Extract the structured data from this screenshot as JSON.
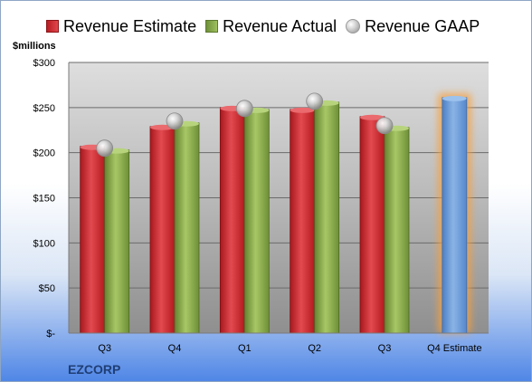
{
  "chart_data": {
    "type": "bar",
    "ylabel": "$millions",
    "ylim": [
      0,
      300
    ],
    "yticks": [
      0,
      50,
      100,
      150,
      200,
      250,
      300
    ],
    "ytick_labels": [
      "$-",
      "$50",
      "$100",
      "$150",
      "$200",
      "$250",
      "$300"
    ],
    "categories": [
      "Q3",
      "Q4",
      "Q1",
      "Q2",
      "Q3",
      "Q4 Estimate"
    ],
    "series": [
      {
        "name": "Revenue Estimate",
        "type": "bar",
        "color": "#c8262c",
        "values": [
          207,
          229,
          250,
          248,
          240,
          null
        ]
      },
      {
        "name": "Revenue Actual",
        "type": "bar",
        "color": "#86a94a",
        "values": [
          203,
          233,
          248,
          256,
          228,
          261
        ]
      },
      {
        "name": "Revenue GAAP",
        "type": "scatter",
        "marker": "sphere",
        "color": "#c0c0c0",
        "values": [
          205,
          235,
          249,
          257,
          230,
          null
        ]
      }
    ],
    "highlight": {
      "category": "Q4 Estimate",
      "bar_color": "#6a9bd6",
      "glow_color": "#f5a040"
    },
    "legend_position": "top",
    "grid": true
  },
  "footer": {
    "company": "EZCORP"
  }
}
